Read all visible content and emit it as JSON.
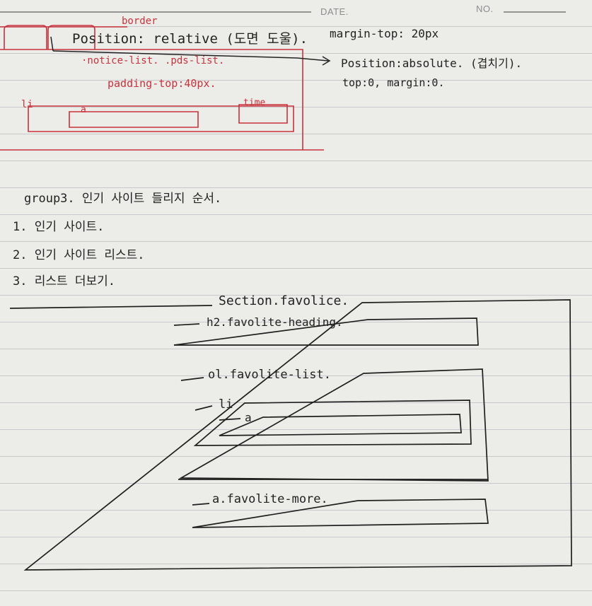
{
  "header": {
    "date_label": "DATE.",
    "no_label": "NO."
  },
  "red_note": {
    "border": "border",
    "notice": "·notice-list. .pds-list.",
    "padding": "padding-top:40px.",
    "li": "li",
    "a": "a",
    "time": "time"
  },
  "notes": {
    "position_relative": "Position: relative (도면 도울).",
    "margin_top": "margin-top: 20px",
    "position_absolute": "Position:absolute. (겹치기).",
    "top_margin": "top:0, margin:0."
  },
  "group": {
    "title": "group3. 인기 사이트 들리지 순서.",
    "items": [
      "1. 인기 사이트.",
      "2. 인기 사이트 리스트.",
      "3. 리스트 더보기."
    ]
  },
  "diagram": {
    "section": "Section.favolice.",
    "h2": "h2.favolite-heading.",
    "ol": "ol.favolite-list.",
    "li": "li",
    "a": "a",
    "more": "a.favolite-more."
  }
}
